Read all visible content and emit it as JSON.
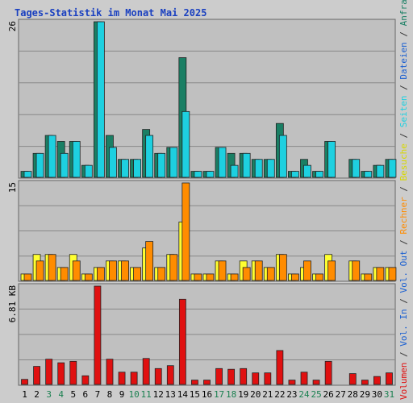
{
  "chart_data": {
    "type": "bar",
    "title": "Tages-Statistik im Monat Mai 2025",
    "categories": [
      "1",
      "2",
      "3",
      "4",
      "5",
      "6",
      "7",
      "8",
      "9",
      "10",
      "11",
      "12",
      "13",
      "14",
      "15",
      "16",
      "17",
      "18",
      "19",
      "20",
      "21",
      "22",
      "23",
      "24",
      "25",
      "26",
      "27",
      "28",
      "29",
      "30",
      "31"
    ],
    "weekend_days": [
      "3",
      "4",
      "10",
      "11",
      "17",
      "18",
      "24",
      "25",
      "31"
    ],
    "panels": [
      {
        "name": "requests-files",
        "ymax_label": "26",
        "ylim": [
          0,
          26
        ],
        "series": [
          {
            "name": "Anfragen",
            "color": "#1a7f64",
            "values": [
              1,
              4,
              7,
              6,
              6,
              2,
              26,
              7,
              3,
              3,
              8,
              4,
              5,
              20,
              1,
              1,
              5,
              4,
              4,
              3,
              3,
              9,
              1,
              3,
              1,
              6,
              0,
              3,
              1,
              2,
              3
            ]
          },
          {
            "name": "Dateien",
            "color": "#1a5fd1",
            "values": []
          },
          {
            "name": "Seiten",
            "color": "#1ed0e0",
            "values": [
              1,
              4,
              7,
              4,
              6,
              2,
              26,
              5,
              3,
              3,
              7,
              4,
              5,
              11,
              1,
              1,
              5,
              2,
              4,
              3,
              3,
              7,
              1,
              2,
              1,
              6,
              0,
              3,
              1,
              2,
              3
            ]
          }
        ]
      },
      {
        "name": "visits-hosts",
        "ymax_label": "15",
        "ylim": [
          0,
          15
        ],
        "series": [
          {
            "name": "Besuche",
            "color": "#ffff30",
            "values": [
              1,
              4,
              4,
              2,
              4,
              1,
              2,
              3,
              3,
              2,
              5,
              2,
              4,
              9,
              1,
              1,
              3,
              1,
              3,
              3,
              2,
              4,
              1,
              2,
              1,
              4,
              0,
              3,
              1,
              2,
              2
            ]
          },
          {
            "name": "Rechner",
            "color": "#ff8c00",
            "values": [
              1,
              3,
              4,
              2,
              3,
              1,
              2,
              3,
              3,
              2,
              6,
              2,
              4,
              15,
              1,
              1,
              3,
              1,
              2,
              3,
              2,
              4,
              1,
              3,
              1,
              3,
              0,
              3,
              1,
              2,
              2
            ]
          }
        ]
      },
      {
        "name": "volume",
        "ymax_label": "6.81 KB",
        "ylim": [
          0,
          6.81
        ],
        "series": [
          {
            "name": "Vol. Out",
            "color": "#1a5fd1",
            "values": []
          },
          {
            "name": "Vol. In",
            "color": "#1a5fd1",
            "values": []
          },
          {
            "name": "Volumen",
            "color": "#e01010",
            "values": [
              0.35,
              1.25,
              1.75,
              1.5,
              1.6,
              0.6,
              6.81,
              1.75,
              0.85,
              0.85,
              1.8,
              1.1,
              1.3,
              5.9,
              0.3,
              0.3,
              1.1,
              1.05,
              1.1,
              0.8,
              0.8,
              2.35,
              0.3,
              0.85,
              0.3,
              1.6,
              0,
              0.75,
              0.3,
              0.55,
              0.8
            ]
          }
        ]
      }
    ],
    "legend_sequence": [
      "Volumen",
      "/",
      "Vol. In",
      "/",
      "Vol. Out",
      "/",
      "Rechner",
      "/",
      "Besuche",
      "/",
      "Seiten",
      "/",
      "Dateien",
      "/",
      "Anfragen"
    ],
    "legend_colors": {
      "Volumen": "#e01010",
      "Vol. In": "#1a5fd1",
      "Vol. Out": "#1a5fd1",
      "Rechner": "#ff8c00",
      "Besuche": "#d8d800",
      "Seiten": "#1ed0e0",
      "Dateien": "#1a5fd1",
      "Anfragen": "#1a7f64",
      "/": "#333333"
    },
    "colors": {
      "frame_bg": "#cccccc",
      "plot_bg": "#c0c0c0",
      "grid": "#888888",
      "title": "#1a40c0",
      "weekday_label": "#000000",
      "weekend_label": "#1a8050"
    }
  }
}
